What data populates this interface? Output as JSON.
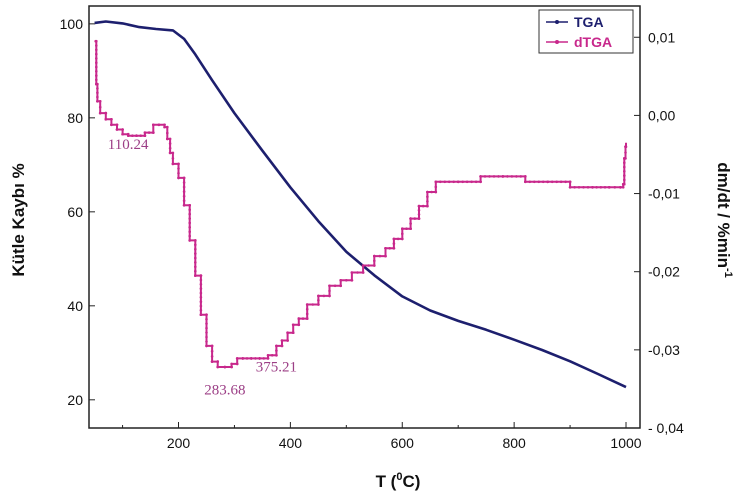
{
  "chart_data": {
    "type": "line",
    "title": "",
    "xlabel": "T (⁰C)",
    "xlabel_parts": {
      "pre": "T (",
      "sup": "0",
      "post": "C)"
    },
    "ylabel_left": "Kütle Kaybı %",
    "ylabel_right": "dm/dt / %min",
    "ylabel_right_sup": "-1",
    "xlim": [
      40,
      1025
    ],
    "ylim_left": [
      14,
      103.8
    ],
    "ylim_right": [
      -0.04,
      0.014
    ],
    "x_ticks": [
      "200",
      "400",
      "600",
      "800",
      "1000"
    ],
    "x_tick_values": [
      200,
      400,
      600,
      800,
      1000
    ],
    "y_left_ticks": [
      "20",
      "40",
      "60",
      "80",
      "100"
    ],
    "y_left_tick_values": [
      20,
      40,
      60,
      80,
      100
    ],
    "y_right_ticks": [
      "0,01",
      "0,00",
      "-0,01",
      "-0,02",
      "-0,03",
      "- 0,04"
    ],
    "y_right_tick_values": [
      0.01,
      0.0,
      -0.01,
      -0.02,
      -0.03,
      -0.04
    ],
    "legend_position": "top-right",
    "grid": false,
    "series": [
      {
        "name": "TGA",
        "axis": "left",
        "color": "#1d1f6e",
        "x": [
          50,
          70,
          100,
          130,
          160,
          190,
          210,
          230,
          260,
          300,
          350,
          400,
          450,
          500,
          550,
          600,
          650,
          700,
          750,
          800,
          850,
          900,
          950,
          1000
        ],
        "y": [
          100.2,
          100.5,
          100.1,
          99.3,
          98.9,
          98.6,
          96.8,
          93.5,
          88.0,
          81.0,
          73.0,
          65.2,
          58.0,
          51.5,
          46.5,
          42.0,
          39.0,
          36.8,
          34.9,
          32.8,
          30.6,
          28.2,
          25.5,
          22.7
        ]
      },
      {
        "name": "dTGA",
        "axis": "right",
        "color": "#c8288c",
        "x": [
          52,
          53,
          55,
          60,
          70,
          80,
          90,
          100,
          110,
          125,
          140,
          155,
          165,
          175,
          180,
          185,
          190,
          200,
          210,
          220,
          230,
          240,
          250,
          260,
          270,
          283,
          295,
          305,
          315,
          330,
          345,
          360,
          375,
          385,
          395,
          405,
          415,
          430,
          450,
          470,
          490,
          510,
          530,
          550,
          570,
          585,
          600,
          615,
          630,
          645,
          660,
          700,
          740,
          780,
          820,
          860,
          900,
          940,
          970,
          990,
          995,
          997,
          999,
          1000
        ],
        "y": [
          0.0095,
          0.004,
          0.0018,
          0.0003,
          -0.0005,
          -0.0012,
          -0.0018,
          -0.0024,
          -0.0026,
          -0.0026,
          -0.0022,
          -0.0012,
          -0.0012,
          -0.0015,
          -0.003,
          -0.0048,
          -0.0062,
          -0.008,
          -0.0115,
          -0.016,
          -0.0205,
          -0.0255,
          -0.0295,
          -0.0315,
          -0.0322,
          -0.0322,
          -0.0318,
          -0.0311,
          -0.0311,
          -0.0311,
          -0.0311,
          -0.0307,
          -0.0295,
          -0.0288,
          -0.0278,
          -0.0268,
          -0.026,
          -0.0242,
          -0.0231,
          -0.0218,
          -0.0211,
          -0.0201,
          -0.0192,
          -0.018,
          -0.017,
          -0.0158,
          -0.0145,
          -0.0132,
          -0.0116,
          -0.0098,
          -0.0085,
          -0.0085,
          -0.0078,
          -0.0078,
          -0.0085,
          -0.0085,
          -0.0092,
          -0.0092,
          -0.0092,
          -0.0092,
          -0.0088,
          -0.0055,
          -0.004,
          -0.0035
        ]
      }
    ],
    "annotations": [
      {
        "text": "110.24",
        "x": 110,
        "y": -0.0043,
        "axis": "right"
      },
      {
        "text": "283.68",
        "x": 283,
        "y": -0.0357,
        "axis": "right"
      },
      {
        "text": "375.21",
        "x": 375,
        "y": -0.0328,
        "axis": "right"
      }
    ],
    "legend": [
      {
        "label": "TGA",
        "color": "#1d1f6e",
        "series": 0
      },
      {
        "label": "dTGA",
        "color": "#c8288c",
        "series": 1
      }
    ]
  }
}
